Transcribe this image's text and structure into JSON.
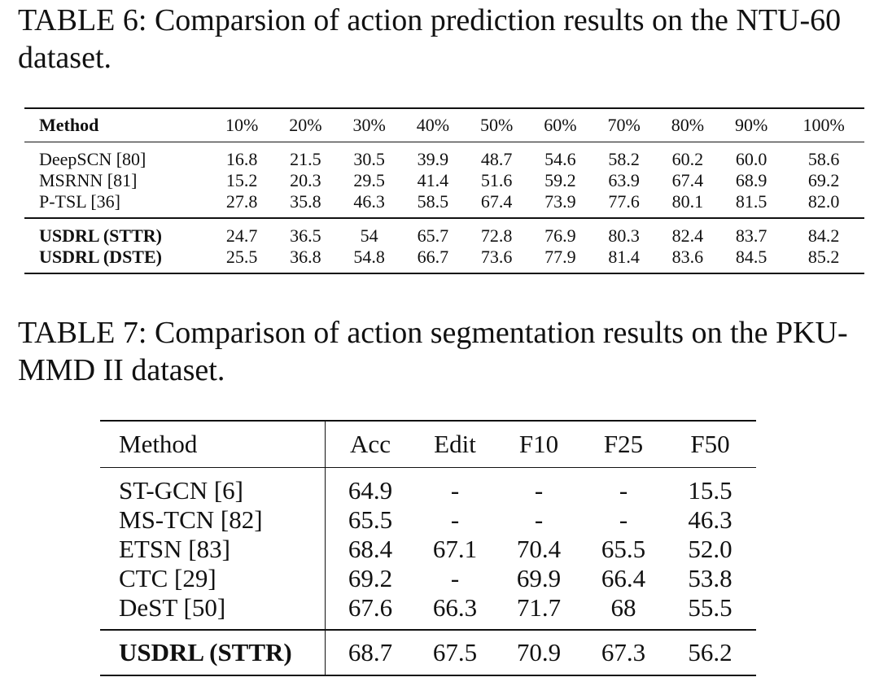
{
  "table6": {
    "caption": "TABLE 6: Comparsion of action prediction results on the NTU-60 dataset.",
    "headers": [
      "Method",
      "10%",
      "20%",
      "30%",
      "40%",
      "50%",
      "60%",
      "70%",
      "80%",
      "90%",
      "100%"
    ],
    "baseline_rows": [
      [
        "DeepSCN [80]",
        "16.8",
        "21.5",
        "30.5",
        "39.9",
        "48.7",
        "54.6",
        "58.2",
        "60.2",
        "60.0",
        "58.6"
      ],
      [
        "MSRNN [81]",
        "15.2",
        "20.3",
        "29.5",
        "41.4",
        "51.6",
        "59.2",
        "63.9",
        "67.4",
        "68.9",
        "69.2"
      ],
      [
        "P-TSL [36]",
        "27.8",
        "35.8",
        "46.3",
        "58.5",
        "67.4",
        "73.9",
        "77.6",
        "80.1",
        "81.5",
        "82.0"
      ]
    ],
    "ours_rows": [
      [
        "USDRL (STTR)",
        "24.7",
        "36.5",
        "54",
        "65.7",
        "72.8",
        "76.9",
        "80.3",
        "82.4",
        "83.7",
        "84.2"
      ],
      [
        "USDRL (DSTE)",
        "25.5",
        "36.8",
        "54.8",
        "66.7",
        "73.6",
        "77.9",
        "81.4",
        "83.6",
        "84.5",
        "85.2"
      ]
    ]
  },
  "table7": {
    "caption": "TABLE 7: Comparison of action segmentation results on the PKU-MMD II dataset.",
    "headers": [
      "Method",
      "Acc",
      "Edit",
      "F10",
      "F25",
      "F50"
    ],
    "baseline_rows": [
      [
        "ST-GCN [6]",
        "64.9",
        "-",
        "-",
        "-",
        "15.5"
      ],
      [
        "MS-TCN [82]",
        "65.5",
        "-",
        "-",
        "-",
        "46.3"
      ],
      [
        "ETSN [83]",
        "68.4",
        "67.1",
        "70.4",
        "65.5",
        "52.0"
      ],
      [
        "CTC [29]",
        "69.2",
        "-",
        "69.9",
        "66.4",
        "53.8"
      ],
      [
        "DeST [50]",
        "67.6",
        "66.3",
        "71.7",
        "68",
        "55.5"
      ]
    ],
    "ours_rows": [
      [
        "USDRL (STTR)",
        "68.7",
        "67.5",
        "70.9",
        "67.3",
        "56.2"
      ]
    ]
  }
}
